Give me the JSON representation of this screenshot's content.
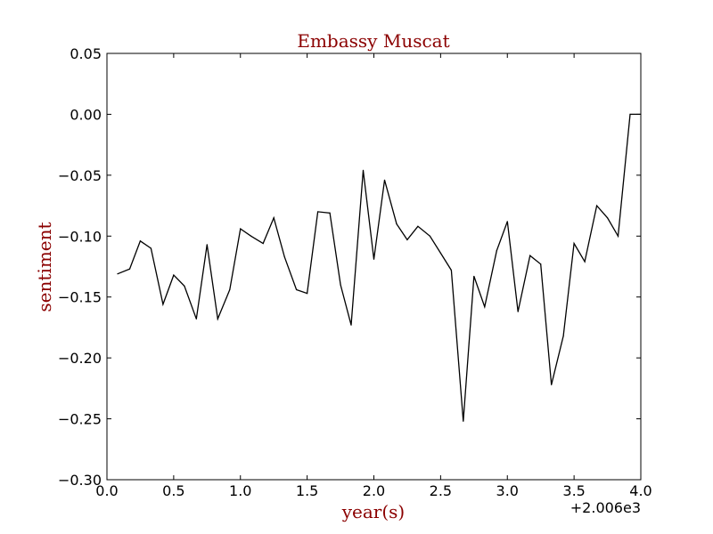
{
  "chart_data": {
    "type": "line",
    "title": "Embassy Muscat",
    "xlabel": "year(s)",
    "ylabel": "sentiment",
    "x_offset_label": "+2.006e3",
    "xlim": [
      0.0,
      4.0
    ],
    "ylim": [
      -0.3,
      0.05
    ],
    "x_ticks": [
      0.0,
      0.5,
      1.0,
      1.5,
      2.0,
      2.5,
      3.0,
      3.5,
      4.0
    ],
    "x_tick_labels": [
      "0.0",
      "0.5",
      "1.0",
      "1.5",
      "2.0",
      "2.5",
      "3.0",
      "3.5",
      "4.0"
    ],
    "y_ticks": [
      0.05,
      0.0,
      -0.05,
      -0.1,
      -0.15,
      -0.2,
      -0.25,
      -0.3
    ],
    "y_tick_labels": [
      "0.05",
      "0.00",
      "−0.05",
      "−0.10",
      "−0.15",
      "−0.20",
      "−0.25",
      "−0.30"
    ],
    "grid": false,
    "colors": {
      "line": "#000000",
      "label": "#8b0000",
      "axes": "#000000"
    },
    "series": [
      {
        "x": [
          0.08,
          0.17,
          0.25,
          0.33,
          0.42,
          0.5,
          0.58,
          0.67,
          0.75,
          0.83,
          0.92,
          1.0,
          1.08,
          1.17,
          1.25,
          1.33,
          1.42,
          1.5,
          1.58,
          1.67,
          1.75,
          1.83,
          1.92,
          2.0,
          2.08,
          2.17,
          2.25,
          2.33,
          2.42,
          2.5,
          2.58,
          2.67,
          2.75,
          2.83,
          2.92,
          3.0,
          3.08,
          3.17,
          3.25,
          3.33,
          3.42,
          3.5,
          3.58,
          3.67,
          3.75,
          3.83,
          3.92,
          4.0
        ],
        "y": [
          -0.131,
          -0.127,
          -0.104,
          -0.11,
          -0.156,
          -0.132,
          -0.141,
          -0.168,
          -0.107,
          -0.168,
          -0.144,
          -0.094,
          -0.1,
          -0.106,
          -0.085,
          -0.117,
          -0.144,
          -0.147,
          -0.08,
          -0.081,
          -0.14,
          -0.173,
          -0.046,
          -0.119,
          -0.054,
          -0.09,
          -0.103,
          -0.092,
          -0.1,
          -0.114,
          -0.128,
          -0.252,
          -0.133,
          -0.158,
          -0.112,
          -0.088,
          -0.162,
          -0.116,
          -0.123,
          -0.222,
          -0.182,
          -0.106,
          -0.121,
          -0.075,
          -0.085,
          -0.1,
          0.0,
          0.0
        ]
      }
    ]
  }
}
